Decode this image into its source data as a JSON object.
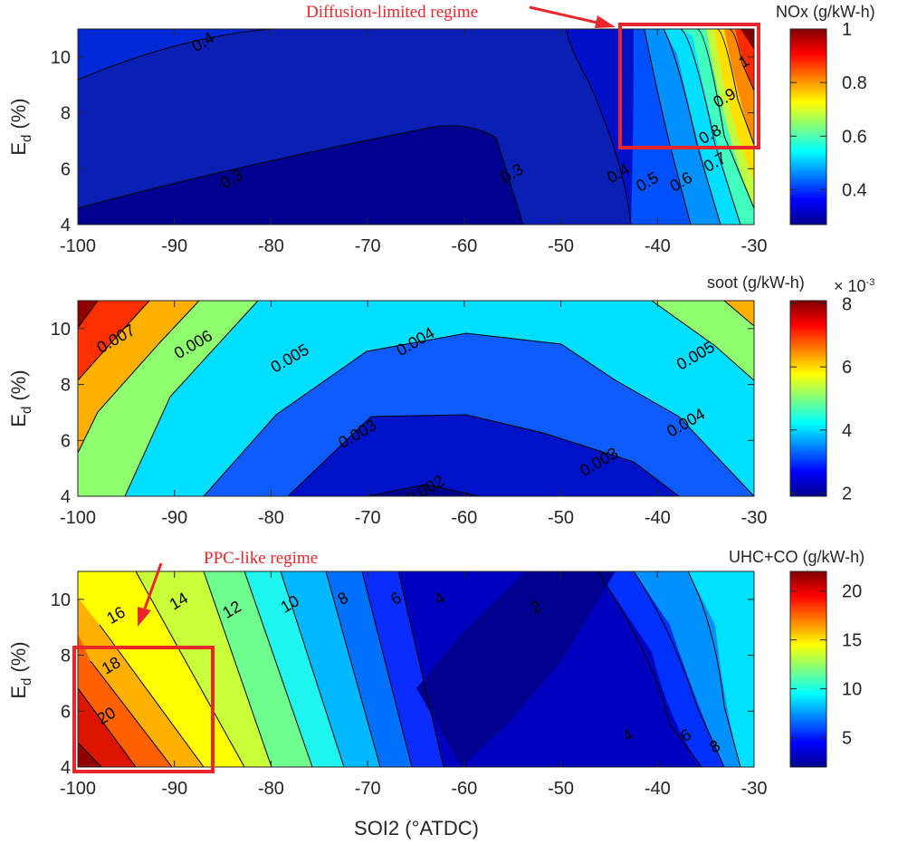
{
  "chart_data": [
    {
      "type": "contour",
      "colorbar_title": "NOx (g/kW-h)",
      "colorbar_ticks": [
        "0.4",
        "0.6",
        "0.8",
        "1"
      ],
      "clim": [
        0.27,
        1.0
      ],
      "x": [
        -100,
        -90,
        -80,
        -70,
        -60,
        -50,
        -40,
        -30
      ],
      "y": [
        4,
        11
      ],
      "xticks": [
        "-100",
        "-90",
        "-80",
        "-70",
        "-60",
        "-50",
        "-40",
        "-30"
      ],
      "yticks": [
        "4",
        "6",
        "8",
        "10"
      ],
      "contour_levels": [
        0.3,
        0.4,
        0.5,
        0.6,
        0.7,
        0.8,
        0.9,
        1.0
      ],
      "contour_labels": [
        {
          "text": "0.4",
          "x": -87,
          "y": 10.5
        },
        {
          "text": "0.3",
          "x": -84,
          "y": 5.6
        },
        {
          "text": "0.3",
          "x": -55,
          "y": 5.8
        },
        {
          "text": "0.4",
          "x": -44,
          "y": 5.8
        },
        {
          "text": "0.5",
          "x": -41,
          "y": 5.5
        },
        {
          "text": "0.6",
          "x": -37.5,
          "y": 5.5
        },
        {
          "text": "0.7",
          "x": -34,
          "y": 6.2
        },
        {
          "text": "0.8",
          "x": -34.5,
          "y": 7.2
        },
        {
          "text": "0.9",
          "x": -33,
          "y": 8.5
        },
        {
          "text": "1",
          "x": -31,
          "y": 9.8
        }
      ],
      "annotation": "Diffusion-limited regime",
      "highlight_region": {
        "x": [
          -44,
          -30
        ],
        "y": [
          6.8,
          11
        ]
      }
    },
    {
      "type": "contour",
      "colorbar_title": "soot (g/kW-h)",
      "colorbar_multiplier": "× 10",
      "colorbar_exponent": "-3",
      "colorbar_ticks": [
        "2",
        "4",
        "6",
        "8"
      ],
      "clim": [
        0.0019,
        0.0081
      ],
      "x": [
        -100,
        -90,
        -80,
        -70,
        -60,
        -50,
        -40,
        -30
      ],
      "y": [
        4,
        11
      ],
      "xticks": [
        "-100",
        "-90",
        "-80",
        "-70",
        "-60",
        "-50",
        "-40",
        "-30"
      ],
      "yticks": [
        "4",
        "6",
        "8",
        "10"
      ],
      "contour_levels": [
        0.002,
        0.003,
        0.004,
        0.005,
        0.006,
        0.007
      ],
      "contour_labels": [
        {
          "text": "0.007",
          "x": -96,
          "y": 9.6
        },
        {
          "text": "0.006",
          "x": -88,
          "y": 9.4
        },
        {
          "text": "0.005",
          "x": -78,
          "y": 8.9
        },
        {
          "text": "0.004",
          "x": -65,
          "y": 9.5
        },
        {
          "text": "0.003",
          "x": -71,
          "y": 6.2
        },
        {
          "text": "0.002",
          "x": -64,
          "y": 4.2
        },
        {
          "text": "0.005",
          "x": -36,
          "y": 9.0
        },
        {
          "text": "0.004",
          "x": -37,
          "y": 6.6
        },
        {
          "text": "0.003",
          "x": -46,
          "y": 5.2
        }
      ]
    },
    {
      "type": "contour",
      "colorbar_title": "UHC+CO (g/kW-h)",
      "colorbar_ticks": [
        "5",
        "10",
        "15",
        "20"
      ],
      "clim": [
        2,
        22
      ],
      "x": [
        -100,
        -90,
        -80,
        -70,
        -60,
        -50,
        -40,
        -30
      ],
      "y": [
        4,
        11
      ],
      "xticks": [
        "-100",
        "-90",
        "-80",
        "-70",
        "-60",
        "-50",
        "-40",
        "-30"
      ],
      "yticks": [
        "4",
        "6",
        "8",
        "10"
      ],
      "xlabel": "SOI2 (°ATDC)",
      "contour_levels": [
        2,
        4,
        6,
        8,
        10,
        12,
        14,
        16,
        18,
        20
      ],
      "contour_labels": [
        {
          "text": "16",
          "x": -96,
          "y": 9.4
        },
        {
          "text": "14",
          "x": -89.5,
          "y": 9.9
        },
        {
          "text": "12",
          "x": -84,
          "y": 9.6
        },
        {
          "text": "10",
          "x": -78,
          "y": 9.8
        },
        {
          "text": "8",
          "x": -72.5,
          "y": 10.0
        },
        {
          "text": "6",
          "x": -67,
          "y": 10.0
        },
        {
          "text": "4",
          "x": -62.5,
          "y": 10.0
        },
        {
          "text": "2",
          "x": -52.5,
          "y": 9.7
        },
        {
          "text": "18",
          "x": -96.5,
          "y": 7.6
        },
        {
          "text": "20",
          "x": -97,
          "y": 5.8
        },
        {
          "text": "4",
          "x": -43,
          "y": 5.1
        },
        {
          "text": "6",
          "x": -37,
          "y": 5.1
        },
        {
          "text": "8",
          "x": -34,
          "y": 4.7
        }
      ],
      "annotation": "PPC-like regime",
      "highlight_region": {
        "x": [
          -100,
          -86
        ],
        "y": [
          4,
          8.3
        ]
      }
    }
  ],
  "ylabel_main": "E",
  "ylabel_sub": "d",
  "ylabel_unit": "(%)"
}
